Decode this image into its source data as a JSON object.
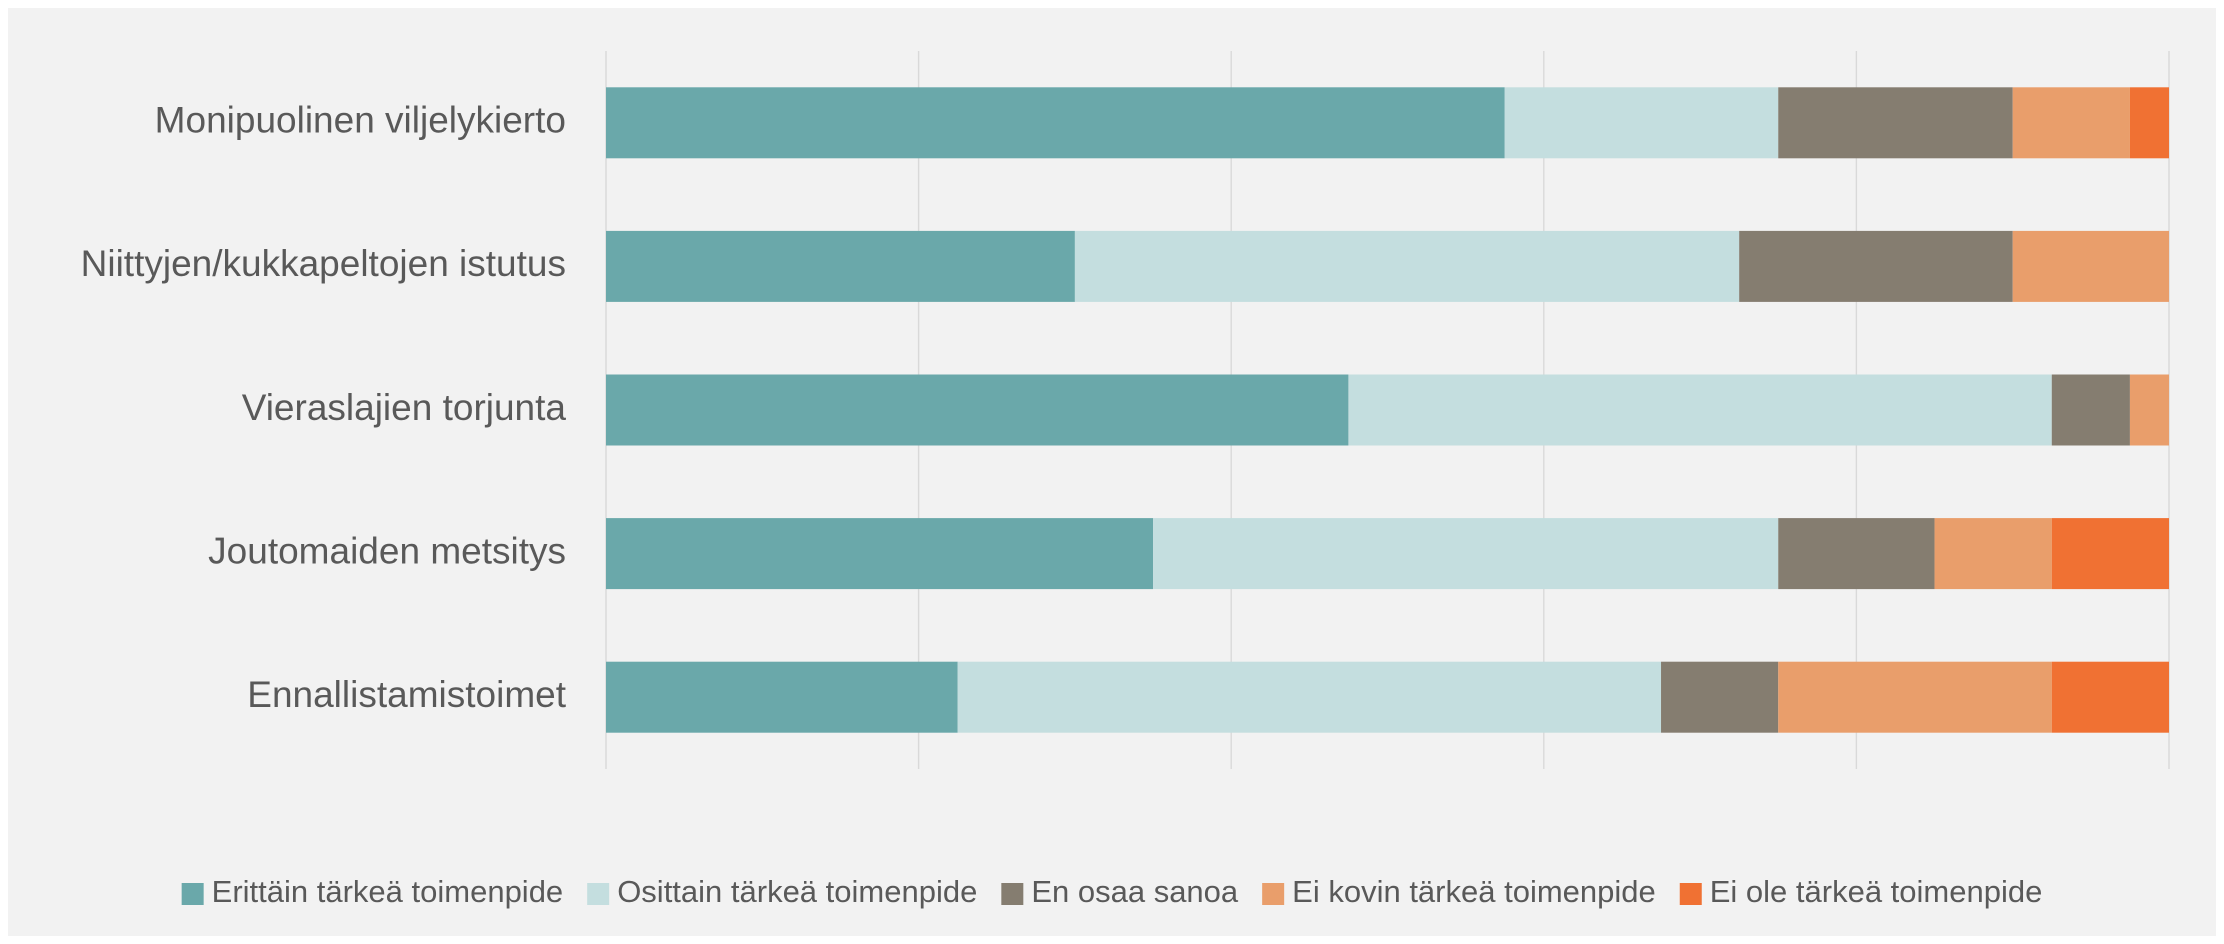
{
  "chart_data": {
    "type": "stacked_bar_horizontal",
    "categories": [
      "Monipuolinen viljelykierto",
      "Niittyjen/kukkapeltojen istutus",
      "Vieraslajien torjunta",
      "Joutomaiden metsitys",
      "Ennallistamistoimet"
    ],
    "series": [
      {
        "name": "Erittäin tärkeä toimenpide",
        "color": "#6aa8aa",
        "values": [
          57.5,
          30,
          47.5,
          35,
          22.5
        ]
      },
      {
        "name": "Osittain tärkeä toimenpide",
        "color": "#c4dedf",
        "values": [
          17.5,
          42.5,
          45,
          40,
          45
        ]
      },
      {
        "name": "En osaa sanoa",
        "color": "#857d70",
        "values": [
          15,
          17.5,
          5,
          10,
          7.5
        ]
      },
      {
        "name": "Ei kovin tärkeä toimenpide",
        "color": "#e99e6b",
        "values": [
          7.5,
          10,
          2.5,
          7.5,
          17.5
        ]
      },
      {
        "name": "Ei ole tärkeä toimenpide",
        "color": "#f07133",
        "values": [
          2.5,
          0,
          0,
          7.5,
          7.5
        ]
      }
    ],
    "xlim": [
      0,
      100
    ],
    "xticks": [
      0,
      20,
      40,
      60,
      80,
      100
    ],
    "grid": true,
    "legend": "bottom"
  }
}
